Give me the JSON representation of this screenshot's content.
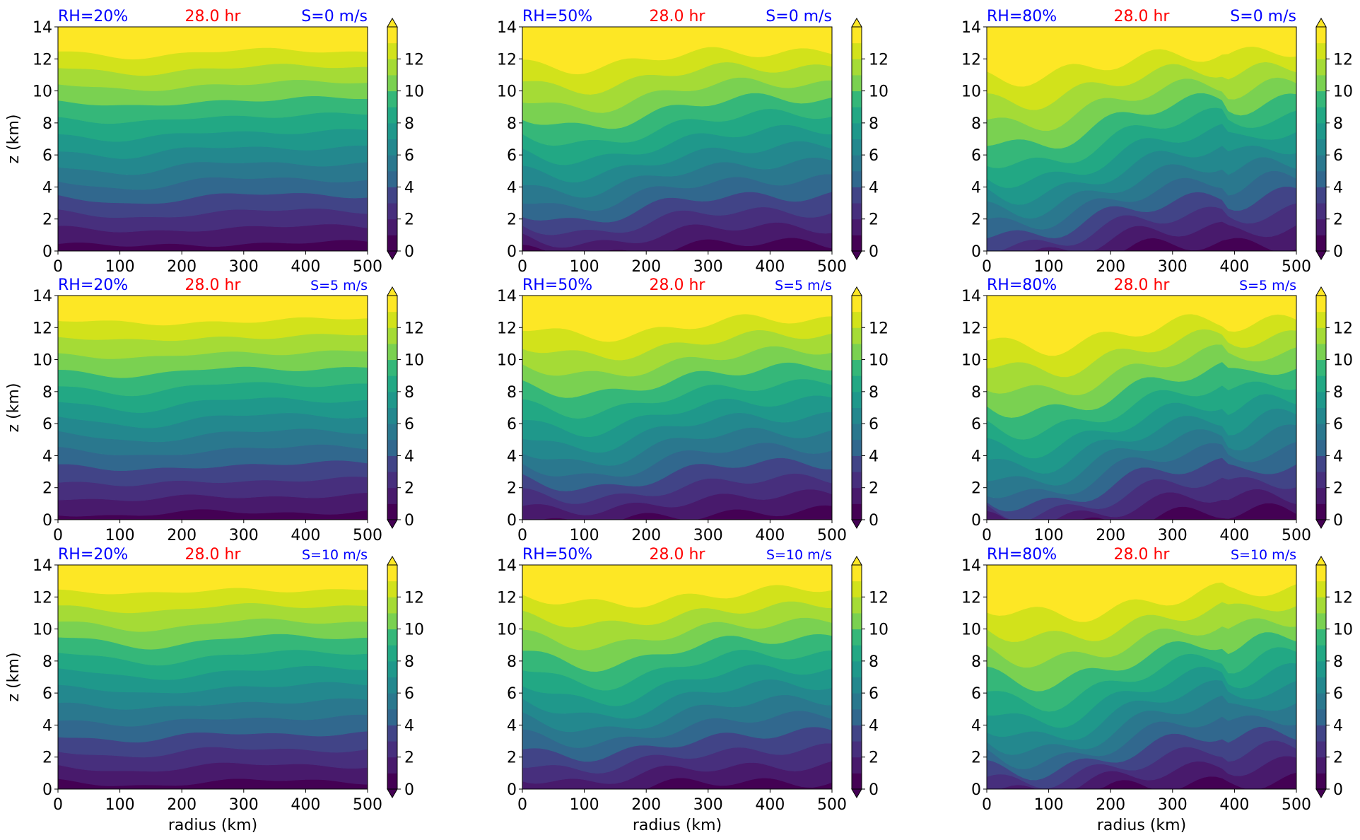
{
  "chart_data": {
    "type": "heatmap",
    "time_label": "28.0 hr",
    "xlabel": "radius (km)",
    "ylabel": "z (km)",
    "xlim": [
      0,
      500
    ],
    "ylim": [
      0,
      14
    ],
    "xticks": [
      "0",
      "100",
      "200",
      "300",
      "400",
      "500"
    ],
    "yticks": [
      "0",
      "2",
      "4",
      "6",
      "8",
      "10",
      "12",
      "14"
    ],
    "colorbar": {
      "ticks": [
        "0",
        "2",
        "4",
        "6",
        "8",
        "10",
        "12"
      ],
      "levels": 14,
      "range": [
        0,
        14
      ],
      "colormap": "viridis",
      "extend": "both"
    },
    "colors": {
      "rh_label": "#0000ff",
      "time_label": "#ff0000",
      "shear_label": "#0000ff"
    },
    "panels": [
      {
        "rh": "RH=20%",
        "shear": "S=0 m/s",
        "rh_value": 20,
        "shear_value": 0
      },
      {
        "rh": "RH=50%",
        "shear": "S=0 m/s",
        "rh_value": 50,
        "shear_value": 0
      },
      {
        "rh": "RH=80%",
        "shear": "S=0 m/s",
        "rh_value": 80,
        "shear_value": 0
      },
      {
        "rh": "RH=20%",
        "shear": "S=5 m/s",
        "rh_value": 20,
        "shear_value": 5
      },
      {
        "rh": "RH=50%",
        "shear": "S=5 m/s",
        "rh_value": 50,
        "shear_value": 5
      },
      {
        "rh": "RH=80%",
        "shear": "S=5 m/s",
        "rh_value": 80,
        "shear_value": 5
      },
      {
        "rh": "RH=20%",
        "shear": "S=10 m/s",
        "rh_value": 20,
        "shear_value": 10
      },
      {
        "rh": "RH=50%",
        "shear": "S=10 m/s",
        "rh_value": 50,
        "shear_value": 10
      },
      {
        "rh": "RH=80%",
        "shear": "S=10 m/s",
        "rh_value": 80,
        "shear_value": 10
      }
    ]
  }
}
